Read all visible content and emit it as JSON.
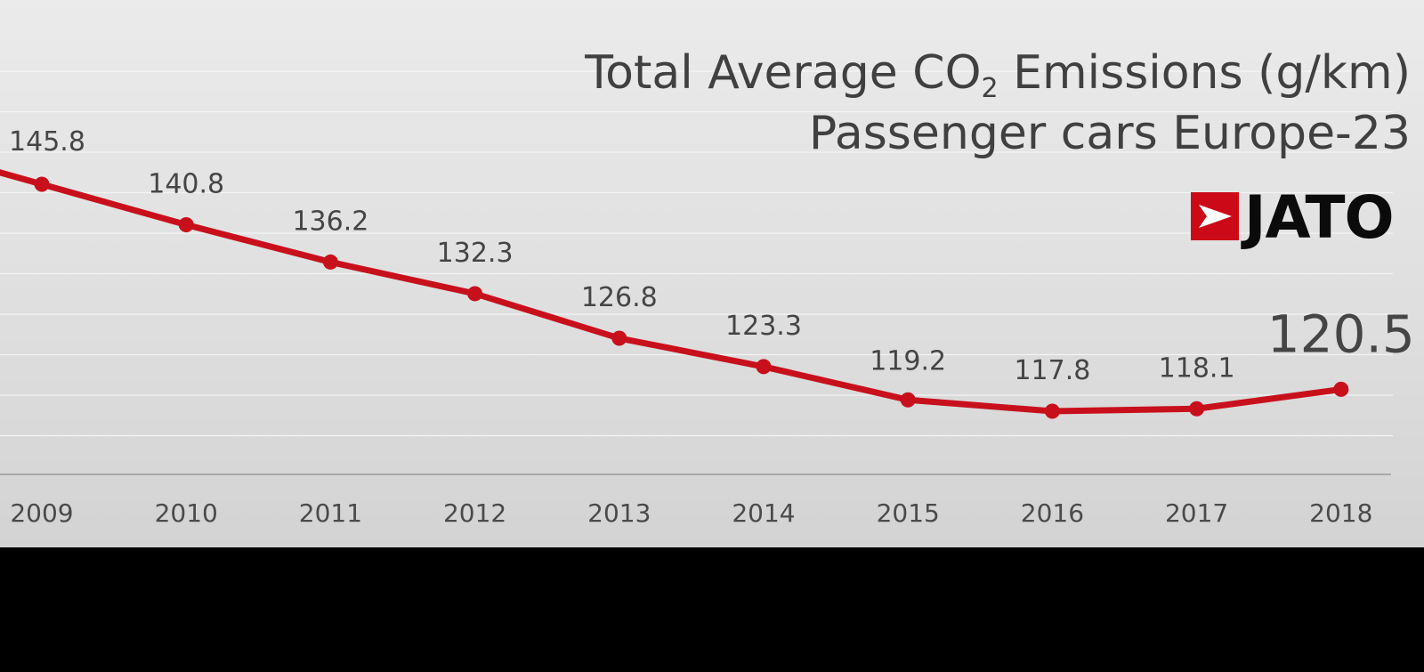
{
  "title": {
    "line1_prefix": "Total Average CO",
    "line1_subscript": "2",
    "line1_suffix": " Emissions (g/km)",
    "line2": "Passenger cars Europe-23"
  },
  "logo": {
    "text": "JATO",
    "icon": "jato-arrow-icon",
    "color": "#cc0a17"
  },
  "colors": {
    "line": "#c8101c",
    "text": "#454545",
    "axis": "#9a9a9a",
    "grid": "#f4f4f4"
  },
  "chart_data": {
    "type": "line",
    "title": "Total Average CO2 Emissions (g/km) Passenger cars Europe-23",
    "xlabel": "",
    "ylabel": "",
    "categories": [
      "2009",
      "2010",
      "2011",
      "2012",
      "2013",
      "2014",
      "2015",
      "2016",
      "2017",
      "2018"
    ],
    "series": [
      {
        "name": "CO2 Emissions (g/km)",
        "values": [
          145.8,
          140.8,
          136.2,
          132.3,
          126.8,
          123.3,
          119.2,
          117.8,
          118.1,
          120.5
        ],
        "labels": [
          "145.8",
          "140.8",
          "136.2",
          "132.3",
          "126.8",
          "123.3",
          "119.2",
          "117.8",
          "118.1",
          "120.5"
        ]
      }
    ],
    "highlight_last": true,
    "grid": true,
    "legend": "none"
  }
}
